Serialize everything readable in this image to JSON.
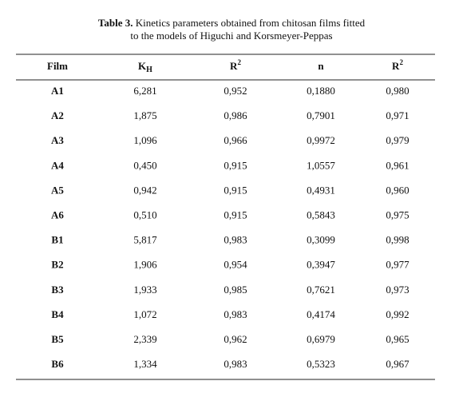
{
  "caption": {
    "label": "Table 3.",
    "line1": "Kinetics parameters obtained from chitosan films fitted",
    "line2": "to the models of Higuchi and Korsmeyer-Peppas"
  },
  "table": {
    "headers": [
      {
        "base": "Film"
      },
      {
        "base": "K",
        "sub": "H"
      },
      {
        "base": "R",
        "sup": "2"
      },
      {
        "base": "n"
      },
      {
        "base": "R",
        "sup": "2"
      }
    ],
    "rows": [
      [
        "A1",
        "6,281",
        "0,952",
        "0,1880",
        "0,980"
      ],
      [
        "A2",
        "1,875",
        "0,986",
        "0,7901",
        "0,971"
      ],
      [
        "A3",
        "1,096",
        "0,966",
        "0,9972",
        "0,979"
      ],
      [
        "A4",
        "0,450",
        "0,915",
        "1,0557",
        "0,961"
      ],
      [
        "A5",
        "0,942",
        "0,915",
        "0,4931",
        "0,960"
      ],
      [
        "A6",
        "0,510",
        "0,915",
        "0,5843",
        "0,975"
      ],
      [
        "B1",
        "5,817",
        "0,983",
        "0,3099",
        "0,998"
      ],
      [
        "B2",
        "1,906",
        "0,954",
        "0,3947",
        "0,977"
      ],
      [
        "B3",
        "1,933",
        "0,985",
        "0,7621",
        "0,973"
      ],
      [
        "B4",
        "1,072",
        "0,983",
        "0,4174",
        "0,992"
      ],
      [
        "B5",
        "2,339",
        "0,962",
        "0,6979",
        "0,965"
      ],
      [
        "B6",
        "1,334",
        "0,983",
        "0,5323",
        "0,967"
      ]
    ]
  }
}
